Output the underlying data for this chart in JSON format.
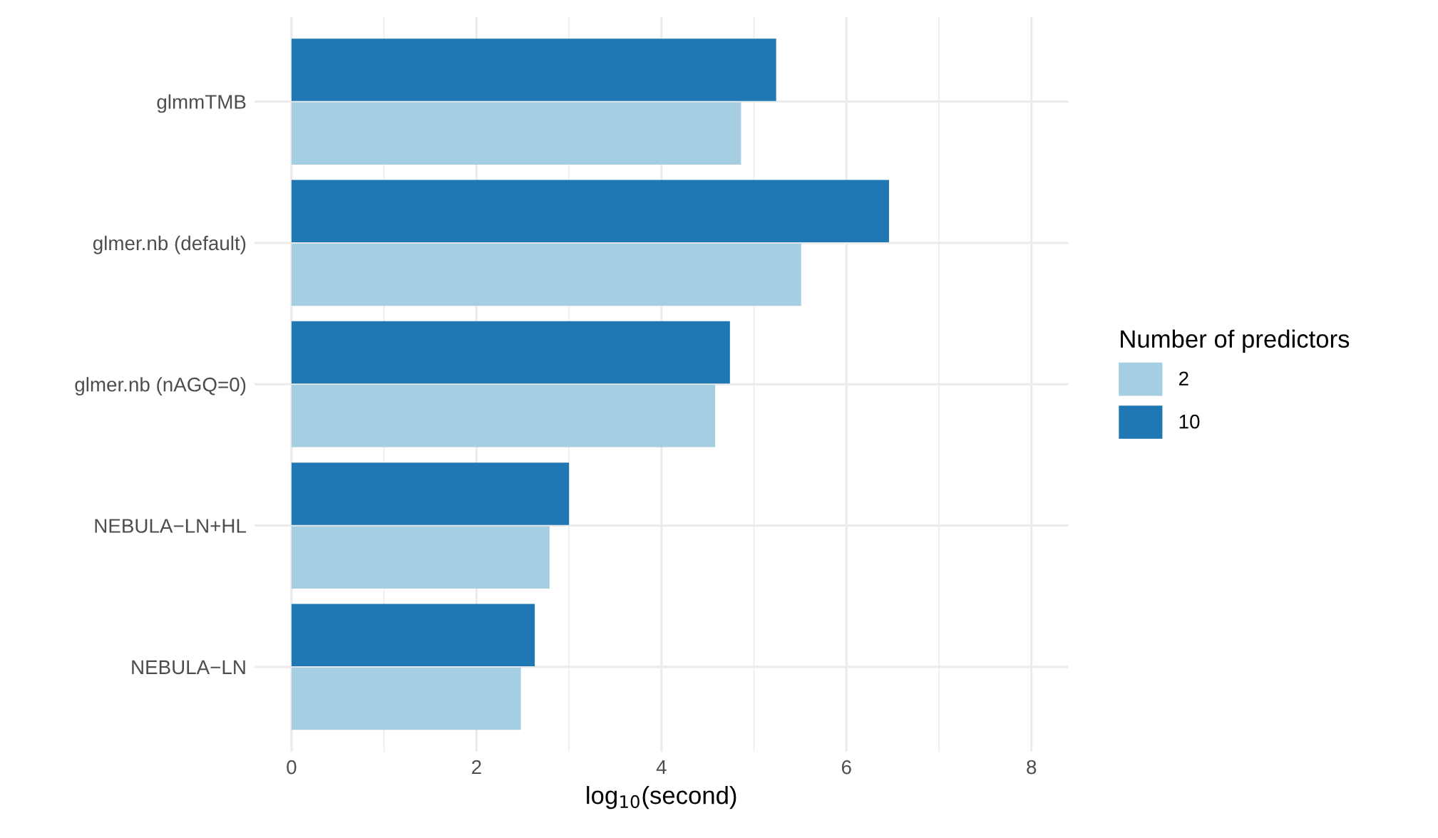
{
  "chart_data": {
    "type": "bar",
    "orientation": "horizontal",
    "categories": [
      "glmmTMB",
      "glmer.nb (default)",
      "glmer.nb (nAGQ=0)",
      "NEBULA−LN+HL",
      "NEBULA−LN"
    ],
    "series": [
      {
        "name": "2",
        "color": "#a6cee3",
        "values": [
          4.86,
          5.51,
          4.58,
          2.79,
          2.48
        ]
      },
      {
        "name": "10",
        "color": "#1f78b4",
        "values": [
          5.24,
          6.46,
          4.74,
          3.0,
          2.63
        ]
      }
    ],
    "xlabel": "log$_{10}$(second)",
    "legend_title": "Number of predictors",
    "xlim": [
      -0.4,
      8.4
    ],
    "xticks": [
      0,
      2,
      4,
      6,
      8
    ],
    "grid": true,
    "legend": "right"
  }
}
